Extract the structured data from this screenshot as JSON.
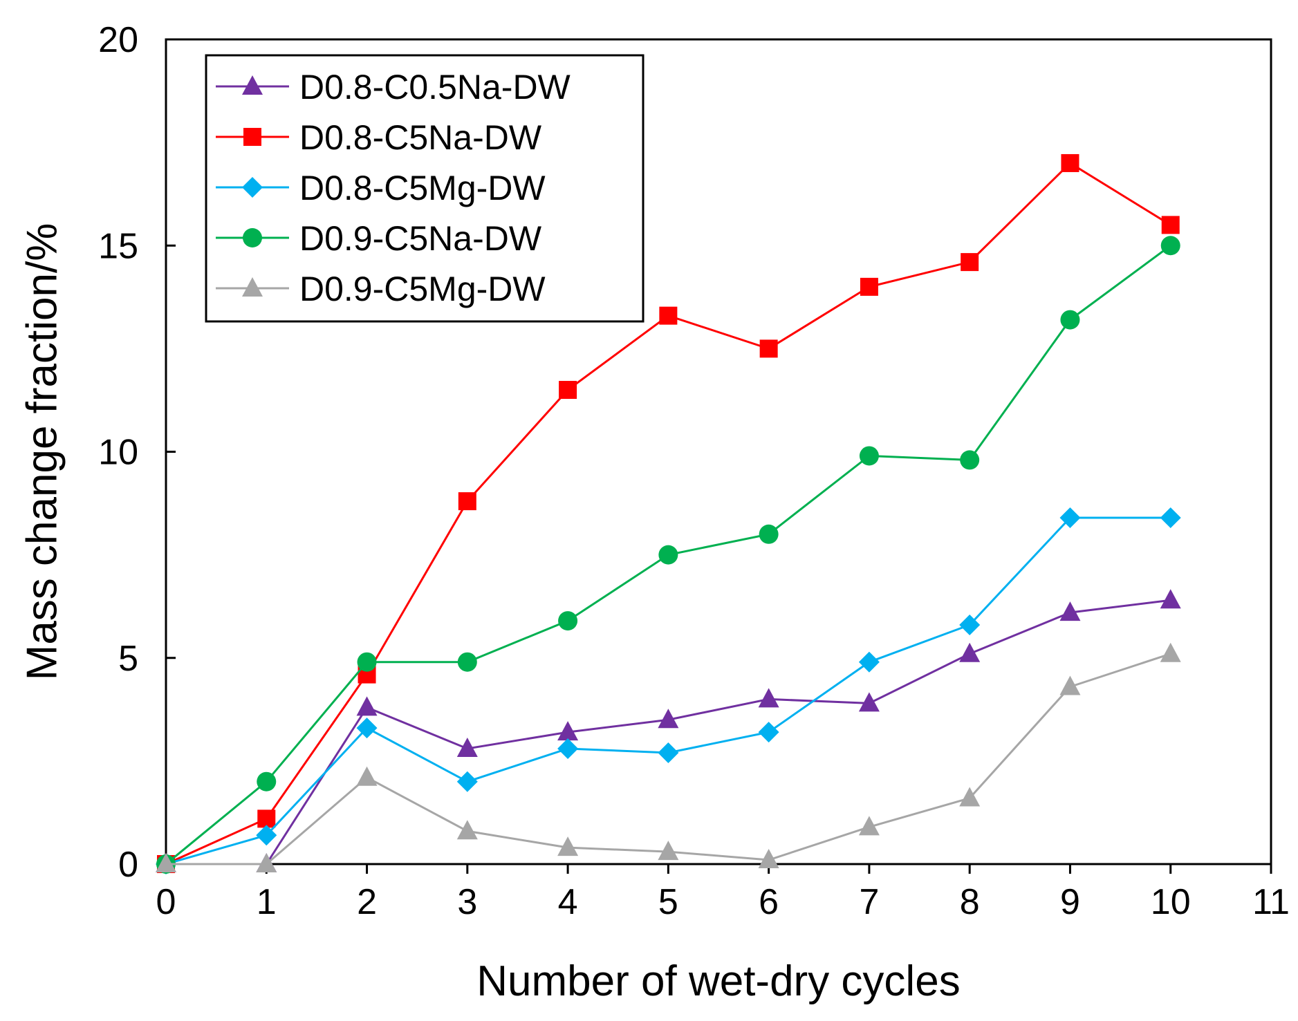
{
  "chart_data": {
    "type": "line",
    "title": "",
    "xlabel": "Number of wet-dry cycles",
    "ylabel": "Mass change fraction/%",
    "xlim": [
      0,
      11
    ],
    "ylim": [
      0,
      20
    ],
    "x_ticks": [
      "0",
      "1",
      "2",
      "3",
      "4",
      "5",
      "6",
      "7",
      "8",
      "9",
      "10",
      "11"
    ],
    "y_ticks": [
      "0",
      "5",
      "10",
      "15",
      "20"
    ],
    "grid": false,
    "legend_position": "top-left",
    "x": [
      0,
      1,
      2,
      3,
      4,
      5,
      6,
      7,
      8,
      9,
      10
    ],
    "series": [
      {
        "name": "D0.8-C0.5Na-DW",
        "marker": "triangle",
        "color": "#7030a0",
        "values": [
          0,
          0,
          3.8,
          2.8,
          3.2,
          3.5,
          4.0,
          3.9,
          5.1,
          6.1,
          6.4
        ]
      },
      {
        "name": "D0.8-C5Na-DW",
        "marker": "square",
        "color": "#ff0000",
        "values": [
          0,
          1.1,
          4.6,
          8.8,
          11.5,
          13.3,
          12.5,
          14.0,
          14.6,
          17.0,
          15.5
        ]
      },
      {
        "name": "D0.8-C5Mg-DW",
        "marker": "diamond",
        "color": "#00b0f0",
        "values": [
          0,
          0.7,
          3.3,
          2.0,
          2.8,
          2.7,
          3.2,
          4.9,
          5.8,
          8.4,
          8.4
        ]
      },
      {
        "name": "D0.9-C5Na-DW",
        "marker": "circle",
        "color": "#00b050",
        "values": [
          0,
          2.0,
          4.9,
          4.9,
          5.9,
          7.5,
          8.0,
          9.9,
          9.8,
          13.2,
          15.0
        ]
      },
      {
        "name": "D0.9-C5Mg-DW",
        "marker": "triangle",
        "color": "#a6a6a6",
        "values": [
          0,
          0,
          2.1,
          0.8,
          0.4,
          0.3,
          0.1,
          0.9,
          1.6,
          4.3,
          5.1
        ]
      }
    ]
  }
}
